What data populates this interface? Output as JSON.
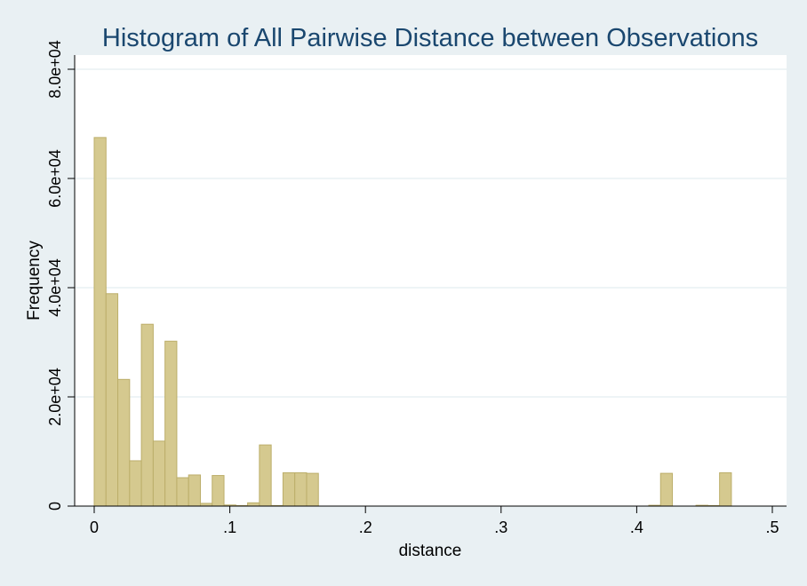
{
  "chart_data": {
    "type": "histogram",
    "title": "Histogram of All Pairwise Distance between Observations",
    "xlabel": "distance",
    "ylabel": "Frequency",
    "xlim": [
      0,
      0.5
    ],
    "ylim": [
      0,
      80000
    ],
    "xticks": [
      {
        "value": 0,
        "label": "0"
      },
      {
        "value": 0.1,
        "label": ".1"
      },
      {
        "value": 0.2,
        "label": ".2"
      },
      {
        "value": 0.3,
        "label": ".3"
      },
      {
        "value": 0.4,
        "label": ".4"
      },
      {
        "value": 0.5,
        "label": ".5"
      }
    ],
    "yticks": [
      {
        "value": 0,
        "label": "0"
      },
      {
        "value": 20000,
        "label": "2.0e+04"
      },
      {
        "value": 40000,
        "label": "4.0e+04"
      },
      {
        "value": 60000,
        "label": "6.0e+04"
      },
      {
        "value": 80000,
        "label": "8.0e+04"
      }
    ],
    "grid": true,
    "bin_width": 0.0087,
    "bins": [
      {
        "start": 0.0,
        "value": 67500
      },
      {
        "start": 0.0087,
        "value": 38900
      },
      {
        "start": 0.0174,
        "value": 23200
      },
      {
        "start": 0.0261,
        "value": 8300
      },
      {
        "start": 0.0348,
        "value": 33300
      },
      {
        "start": 0.0435,
        "value": 11900
      },
      {
        "start": 0.0522,
        "value": 30200
      },
      {
        "start": 0.0609,
        "value": 5200
      },
      {
        "start": 0.0696,
        "value": 5700
      },
      {
        "start": 0.0783,
        "value": 500
      },
      {
        "start": 0.087,
        "value": 5600
      },
      {
        "start": 0.0957,
        "value": 200
      },
      {
        "start": 0.1044,
        "value": 100
      },
      {
        "start": 0.1131,
        "value": 600
      },
      {
        "start": 0.1218,
        "value": 11200
      },
      {
        "start": 0.1305,
        "value": 100
      },
      {
        "start": 0.1392,
        "value": 6100
      },
      {
        "start": 0.1479,
        "value": 6100
      },
      {
        "start": 0.1566,
        "value": 6000
      },
      {
        "start": 0.4089,
        "value": 150
      },
      {
        "start": 0.4176,
        "value": 6000
      },
      {
        "start": 0.4437,
        "value": 150
      },
      {
        "start": 0.4524,
        "value": 100
      },
      {
        "start": 0.4611,
        "value": 6100
      }
    ]
  }
}
